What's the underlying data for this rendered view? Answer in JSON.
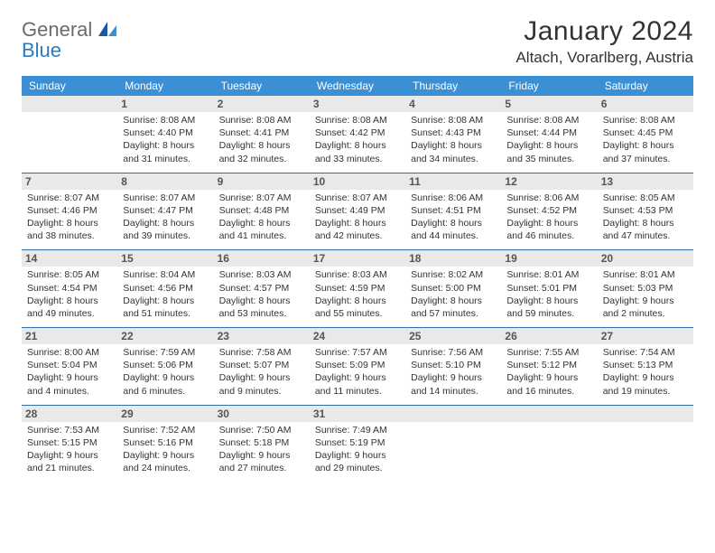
{
  "logo": {
    "word1": "General",
    "word2": "Blue"
  },
  "title": "January 2024",
  "location": "Altach, Vorarlberg, Austria",
  "colors": {
    "header_bg": "#3b8fd4",
    "header_text": "#ffffff",
    "rule": "#2f6fa8",
    "daynum_bg": "#e9e9e9",
    "daynum_text": "#555555",
    "body_text": "#333333",
    "logo_gray": "#6b6b6b",
    "logo_blue": "#2b7bbf"
  },
  "day_headers": [
    "Sunday",
    "Monday",
    "Tuesday",
    "Wednesday",
    "Thursday",
    "Friday",
    "Saturday"
  ],
  "weeks": [
    [
      null,
      {
        "n": "1",
        "sr": "Sunrise: 8:08 AM",
        "ss": "Sunset: 4:40 PM",
        "d1": "Daylight: 8 hours",
        "d2": "and 31 minutes."
      },
      {
        "n": "2",
        "sr": "Sunrise: 8:08 AM",
        "ss": "Sunset: 4:41 PM",
        "d1": "Daylight: 8 hours",
        "d2": "and 32 minutes."
      },
      {
        "n": "3",
        "sr": "Sunrise: 8:08 AM",
        "ss": "Sunset: 4:42 PM",
        "d1": "Daylight: 8 hours",
        "d2": "and 33 minutes."
      },
      {
        "n": "4",
        "sr": "Sunrise: 8:08 AM",
        "ss": "Sunset: 4:43 PM",
        "d1": "Daylight: 8 hours",
        "d2": "and 34 minutes."
      },
      {
        "n": "5",
        "sr": "Sunrise: 8:08 AM",
        "ss": "Sunset: 4:44 PM",
        "d1": "Daylight: 8 hours",
        "d2": "and 35 minutes."
      },
      {
        "n": "6",
        "sr": "Sunrise: 8:08 AM",
        "ss": "Sunset: 4:45 PM",
        "d1": "Daylight: 8 hours",
        "d2": "and 37 minutes."
      }
    ],
    [
      {
        "n": "7",
        "sr": "Sunrise: 8:07 AM",
        "ss": "Sunset: 4:46 PM",
        "d1": "Daylight: 8 hours",
        "d2": "and 38 minutes."
      },
      {
        "n": "8",
        "sr": "Sunrise: 8:07 AM",
        "ss": "Sunset: 4:47 PM",
        "d1": "Daylight: 8 hours",
        "d2": "and 39 minutes."
      },
      {
        "n": "9",
        "sr": "Sunrise: 8:07 AM",
        "ss": "Sunset: 4:48 PM",
        "d1": "Daylight: 8 hours",
        "d2": "and 41 minutes."
      },
      {
        "n": "10",
        "sr": "Sunrise: 8:07 AM",
        "ss": "Sunset: 4:49 PM",
        "d1": "Daylight: 8 hours",
        "d2": "and 42 minutes."
      },
      {
        "n": "11",
        "sr": "Sunrise: 8:06 AM",
        "ss": "Sunset: 4:51 PM",
        "d1": "Daylight: 8 hours",
        "d2": "and 44 minutes."
      },
      {
        "n": "12",
        "sr": "Sunrise: 8:06 AM",
        "ss": "Sunset: 4:52 PM",
        "d1": "Daylight: 8 hours",
        "d2": "and 46 minutes."
      },
      {
        "n": "13",
        "sr": "Sunrise: 8:05 AM",
        "ss": "Sunset: 4:53 PM",
        "d1": "Daylight: 8 hours",
        "d2": "and 47 minutes."
      }
    ],
    [
      {
        "n": "14",
        "sr": "Sunrise: 8:05 AM",
        "ss": "Sunset: 4:54 PM",
        "d1": "Daylight: 8 hours",
        "d2": "and 49 minutes."
      },
      {
        "n": "15",
        "sr": "Sunrise: 8:04 AM",
        "ss": "Sunset: 4:56 PM",
        "d1": "Daylight: 8 hours",
        "d2": "and 51 minutes."
      },
      {
        "n": "16",
        "sr": "Sunrise: 8:03 AM",
        "ss": "Sunset: 4:57 PM",
        "d1": "Daylight: 8 hours",
        "d2": "and 53 minutes."
      },
      {
        "n": "17",
        "sr": "Sunrise: 8:03 AM",
        "ss": "Sunset: 4:59 PM",
        "d1": "Daylight: 8 hours",
        "d2": "and 55 minutes."
      },
      {
        "n": "18",
        "sr": "Sunrise: 8:02 AM",
        "ss": "Sunset: 5:00 PM",
        "d1": "Daylight: 8 hours",
        "d2": "and 57 minutes."
      },
      {
        "n": "19",
        "sr": "Sunrise: 8:01 AM",
        "ss": "Sunset: 5:01 PM",
        "d1": "Daylight: 8 hours",
        "d2": "and 59 minutes."
      },
      {
        "n": "20",
        "sr": "Sunrise: 8:01 AM",
        "ss": "Sunset: 5:03 PM",
        "d1": "Daylight: 9 hours",
        "d2": "and 2 minutes."
      }
    ],
    [
      {
        "n": "21",
        "sr": "Sunrise: 8:00 AM",
        "ss": "Sunset: 5:04 PM",
        "d1": "Daylight: 9 hours",
        "d2": "and 4 minutes."
      },
      {
        "n": "22",
        "sr": "Sunrise: 7:59 AM",
        "ss": "Sunset: 5:06 PM",
        "d1": "Daylight: 9 hours",
        "d2": "and 6 minutes."
      },
      {
        "n": "23",
        "sr": "Sunrise: 7:58 AM",
        "ss": "Sunset: 5:07 PM",
        "d1": "Daylight: 9 hours",
        "d2": "and 9 minutes."
      },
      {
        "n": "24",
        "sr": "Sunrise: 7:57 AM",
        "ss": "Sunset: 5:09 PM",
        "d1": "Daylight: 9 hours",
        "d2": "and 11 minutes."
      },
      {
        "n": "25",
        "sr": "Sunrise: 7:56 AM",
        "ss": "Sunset: 5:10 PM",
        "d1": "Daylight: 9 hours",
        "d2": "and 14 minutes."
      },
      {
        "n": "26",
        "sr": "Sunrise: 7:55 AM",
        "ss": "Sunset: 5:12 PM",
        "d1": "Daylight: 9 hours",
        "d2": "and 16 minutes."
      },
      {
        "n": "27",
        "sr": "Sunrise: 7:54 AM",
        "ss": "Sunset: 5:13 PM",
        "d1": "Daylight: 9 hours",
        "d2": "and 19 minutes."
      }
    ],
    [
      {
        "n": "28",
        "sr": "Sunrise: 7:53 AM",
        "ss": "Sunset: 5:15 PM",
        "d1": "Daylight: 9 hours",
        "d2": "and 21 minutes."
      },
      {
        "n": "29",
        "sr": "Sunrise: 7:52 AM",
        "ss": "Sunset: 5:16 PM",
        "d1": "Daylight: 9 hours",
        "d2": "and 24 minutes."
      },
      {
        "n": "30",
        "sr": "Sunrise: 7:50 AM",
        "ss": "Sunset: 5:18 PM",
        "d1": "Daylight: 9 hours",
        "d2": "and 27 minutes."
      },
      {
        "n": "31",
        "sr": "Sunrise: 7:49 AM",
        "ss": "Sunset: 5:19 PM",
        "d1": "Daylight: 9 hours",
        "d2": "and 29 minutes."
      },
      null,
      null,
      null
    ]
  ]
}
